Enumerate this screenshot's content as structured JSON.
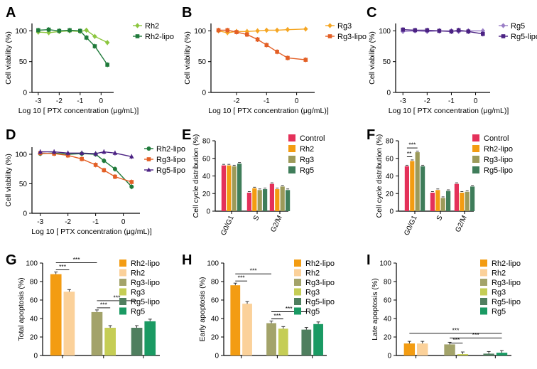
{
  "chart_data": [
    {
      "panel": "A",
      "type": "line",
      "xlabel": "Log 10 [ PTX concentration (μg/mL)]",
      "ylabel": "Cell viability (%)",
      "xlim": [
        -3.3,
        0.6
      ],
      "ylim": [
        0,
        112
      ],
      "xticks": [
        "-3",
        "-2",
        "-1",
        "0"
      ],
      "yticks": [
        "0",
        "50",
        "100"
      ],
      "series": [
        {
          "name": "Rh2",
          "color": "#8cc63f",
          "marker": "diamond",
          "x": [
            -3,
            -2.5,
            -2,
            -1.5,
            -1,
            -0.7,
            -0.3,
            0.3
          ],
          "y": [
            98,
            97,
            99,
            100,
            99,
            101,
            91,
            81
          ]
        },
        {
          "name": "Rh2-lipo",
          "color": "#1f7a3a",
          "marker": "square",
          "x": [
            -3,
            -2.5,
            -2,
            -1.5,
            -1,
            -0.7,
            -0.3,
            0.3
          ],
          "y": [
            101,
            102,
            100,
            101,
            100,
            89,
            75,
            45
          ]
        }
      ]
    },
    {
      "panel": "B",
      "type": "line",
      "xlabel": "Log 10 [ PTX concentration (μg/mL)]",
      "ylabel": "Cell viability (%)",
      "xlim": [
        -2.85,
        0.6
      ],
      "ylim": [
        0,
        112
      ],
      "xticks": [
        "-2",
        "-1",
        "0"
      ],
      "yticks": [
        "0",
        "50",
        "100"
      ],
      "series": [
        {
          "name": "Rg3",
          "color": "#f5a623",
          "marker": "diamond",
          "x": [
            -2.6,
            -2.3,
            -2,
            -1.65,
            -1.3,
            -1,
            -0.65,
            -0.3,
            0.3
          ],
          "y": [
            100,
            97,
            99,
            99,
            100,
            101,
            101,
            102,
            103
          ]
        },
        {
          "name": "Rg3-lipo",
          "color": "#e35f25",
          "marker": "square",
          "x": [
            -2.6,
            -2.3,
            -2,
            -1.65,
            -1.3,
            -1,
            -0.65,
            -0.3,
            0.3
          ],
          "y": [
            101,
            101,
            98,
            94,
            86,
            77,
            66,
            56,
            53
          ]
        }
      ]
    },
    {
      "panel": "C",
      "type": "line",
      "xlabel": "Log 10 [ PTX concentration (μg/mL)]",
      "ylabel": "Cell viability (%)",
      "xlim": [
        -3.3,
        0.6
      ],
      "ylim": [
        0,
        112
      ],
      "xticks": [
        "-3",
        "-2",
        "-1",
        "0"
      ],
      "yticks": [
        "0",
        "50",
        "100"
      ],
      "series": [
        {
          "name": "Rg5",
          "color": "#9b7fc7",
          "marker": "diamond",
          "x": [
            -3,
            -2.5,
            -2,
            -1.5,
            -1,
            -0.7,
            -0.3,
            0.3
          ],
          "y": [
            99,
            100,
            99,
            100,
            100,
            99,
            100,
            100
          ]
        },
        {
          "name": "Rg5-lipo",
          "color": "#4b2283",
          "marker": "square",
          "x": [
            -3,
            -2.5,
            -2,
            -1.5,
            -1,
            -0.7,
            -0.3,
            0.3
          ],
          "y": [
            102,
            101,
            101,
            100,
            99,
            101,
            99,
            95
          ]
        }
      ]
    },
    {
      "panel": "D",
      "type": "line",
      "xlabel": "Log 10 [ PTX concentration (μg/mL)]",
      "ylabel": "Cell viability (%)",
      "xlim": [
        -3.3,
        0.6
      ],
      "ylim": [
        0,
        112
      ],
      "xticks": [
        "-3",
        "-2",
        "-1",
        "0"
      ],
      "yticks": [
        "0",
        "50",
        "100"
      ],
      "series": [
        {
          "name": "Rh2-lipo",
          "color": "#1f7a3a",
          "marker": "circle",
          "x": [
            -3,
            -2.5,
            -2,
            -1.5,
            -1,
            -0.7,
            -0.3,
            0.3
          ],
          "y": [
            101,
            102,
            100,
            101,
            100,
            89,
            75,
            45
          ]
        },
        {
          "name": "Rg3-lipo",
          "color": "#e35f25",
          "marker": "square",
          "x": [
            -3,
            -2.5,
            -2,
            -1.5,
            -1,
            -0.7,
            -0.3,
            0.3
          ],
          "y": [
            102,
            101,
            98,
            92,
            82,
            73,
            62,
            53
          ]
        },
        {
          "name": "Rg5-lipo",
          "color": "#4b2283",
          "marker": "triangle",
          "x": [
            -3,
            -2.5,
            -2,
            -1.5,
            -1,
            -0.7,
            -0.3,
            0.3
          ],
          "y": [
            104,
            104,
            102,
            102,
            101,
            104,
            102,
            96
          ]
        }
      ]
    },
    {
      "panel": "E",
      "type": "bar",
      "ylabel": "Cell cycle distribution (%)",
      "ylim": [
        0,
        80
      ],
      "yticks": [
        "0",
        "20",
        "40",
        "60",
        "80"
      ],
      "categories": [
        "G0/G1",
        "S",
        "G2/M"
      ],
      "series": [
        {
          "name": "Control",
          "color": "#e4315a",
          "values": [
            52,
            21,
            31
          ]
        },
        {
          "name": "Rh2",
          "color": "#f39c12",
          "values": [
            52,
            26,
            25
          ]
        },
        {
          "name": "Rg3",
          "color": "#9c9a5a",
          "values": [
            51,
            24,
            28
          ]
        },
        {
          "name": "Rg5",
          "color": "#3f7d5a",
          "values": [
            54,
            25,
            24
          ]
        }
      ]
    },
    {
      "panel": "F",
      "type": "bar",
      "ylabel": "Cell cycle distribution (%)",
      "ylim": [
        0,
        80
      ],
      "yticks": [
        "0",
        "20",
        "40",
        "60",
        "80"
      ],
      "categories": [
        "G0/G1",
        "S",
        "G2/M"
      ],
      "series": [
        {
          "name": "Control",
          "color": "#e4315a",
          "values": [
            51,
            21,
            31
          ]
        },
        {
          "name": "Rh2-lipo",
          "color": "#f39c12",
          "values": [
            57,
            24,
            21
          ]
        },
        {
          "name": "Rg3-lipo",
          "color": "#9c9a5a",
          "values": [
            67,
            15,
            22
          ]
        },
        {
          "name": "Rg5-lipo",
          "color": "#3f7d5a",
          "values": [
            51,
            23,
            28
          ]
        }
      ],
      "annotations": [
        "**",
        "***"
      ]
    },
    {
      "panel": "G",
      "type": "bar",
      "ylabel": "Total apoptosis (%)",
      "ylim": [
        0,
        100
      ],
      "yticks": [
        "0",
        "20",
        "40",
        "60",
        "80",
        "100"
      ],
      "categories": [
        "Rh2-lipo",
        "Rh2",
        "Rg3-lipo",
        "Rg3",
        "Rg5-lipo",
        "Rg5"
      ],
      "values": [
        88,
        69,
        47,
        30,
        30,
        37
      ],
      "colors": [
        "#f39c12",
        "#fbd19a",
        "#a3a36a",
        "#c5cd55",
        "#4f7f5f",
        "#1a9a63"
      ],
      "annotations": [
        "***",
        "***",
        "***",
        "***"
      ]
    },
    {
      "panel": "H",
      "type": "bar",
      "ylabel": "Early apoptosis (%)",
      "ylim": [
        0,
        100
      ],
      "yticks": [
        "0",
        "20",
        "40",
        "60",
        "80",
        "100"
      ],
      "categories": [
        "Rh2-lipo",
        "Rh2",
        "Rg3-lipo",
        "Rg3",
        "Rg5-lipo",
        "Rg5"
      ],
      "values": [
        76,
        56,
        35,
        29,
        28,
        34
      ],
      "colors": [
        "#f39c12",
        "#fbd19a",
        "#a3a36a",
        "#c5cd55",
        "#4f7f5f",
        "#1a9a63"
      ],
      "annotations": [
        "***",
        "***",
        "***",
        "***"
      ]
    },
    {
      "panel": "I",
      "type": "bar",
      "ylabel": "Late apoptosis (%)",
      "ylim": [
        0,
        100
      ],
      "yticks": [
        "0",
        "20",
        "40",
        "60",
        "80",
        "100"
      ],
      "categories": [
        "Rh2-lipo",
        "Rh2",
        "Rg3-lipo",
        "Rg3",
        "Rg5-lipo",
        "Rg5"
      ],
      "values": [
        13,
        13,
        12,
        1.5,
        2,
        3
      ],
      "colors": [
        "#f39c12",
        "#fbd19a",
        "#a3a36a",
        "#c5cd55",
        "#4f7f5f",
        "#1a9a63"
      ],
      "annotations": [
        "***",
        "***",
        "***"
      ]
    }
  ]
}
